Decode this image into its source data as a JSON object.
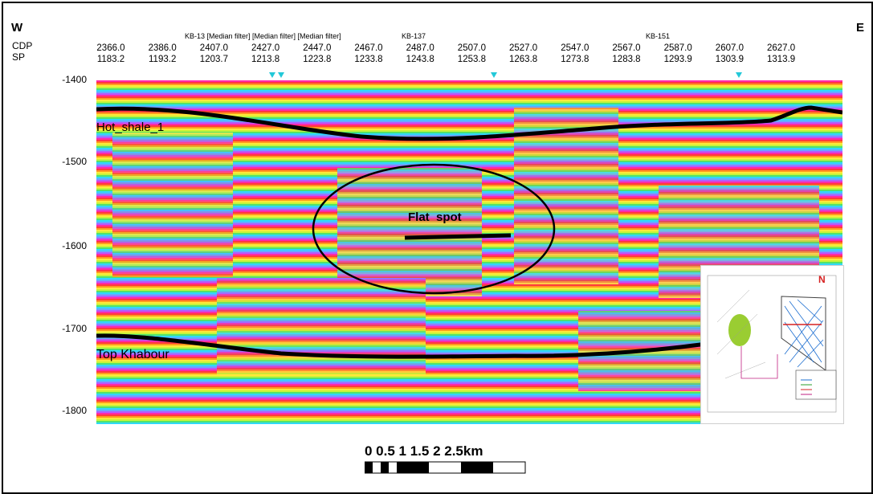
{
  "direction": {
    "west": "W",
    "east": "E"
  },
  "headers": {
    "cdp": "CDP",
    "sp": "SP"
  },
  "wells": {
    "kb13": "KB-13 [Median filter] [Median filter] [Median filter]",
    "kb137": "KB-137",
    "kb151": "KB-151"
  },
  "cdp_values": [
    "2366.0",
    "2386.0",
    "2407.0",
    "2427.0",
    "2447.0",
    "2467.0",
    "2487.0",
    "2507.0",
    "2527.0",
    "2547.0",
    "2567.0",
    "2587.0",
    "2607.0",
    "2627.0"
  ],
  "sp_values": [
    "1183.2",
    "1193.2",
    "1203.7",
    "1213.8",
    "1223.8",
    "1233.8",
    "1243.8",
    "1253.8",
    "1263.8",
    "1273.8",
    "1283.8",
    "1293.9",
    "1303.9",
    "1313.9"
  ],
  "y_ticks": [
    "-1400",
    "-1500",
    "-1600",
    "-1700",
    "-1800"
  ],
  "horizons": {
    "hot_shale": "Hot_shale_1",
    "top_khabour": "Top Khabour"
  },
  "annotation": {
    "flat_spot": "Flat  spot"
  },
  "scale_bar": {
    "label": "0  0.5  1  1.5  2  2.5km"
  },
  "inset": {
    "north": "N"
  },
  "colors": {
    "horizon": "#000000",
    "marker": "#22c8d8",
    "palette": [
      "#ff2aa9",
      "#ff3b3b",
      "#ff9a1e",
      "#ffe93a",
      "#c6f43a",
      "#52e26b",
      "#2fd8ff",
      "#6aa6ff",
      "#b35cff"
    ]
  }
}
